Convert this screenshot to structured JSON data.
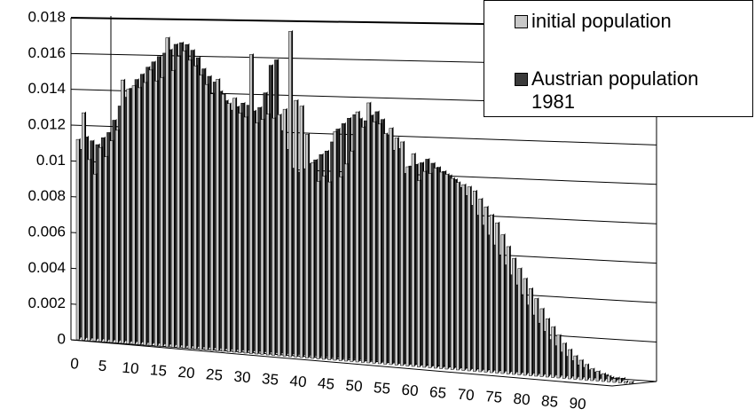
{
  "chart_data": {
    "type": "bar3d",
    "categories": [
      0,
      null,
      null,
      null,
      null,
      5,
      null,
      null,
      null,
      null,
      10,
      null,
      null,
      null,
      null,
      15,
      null,
      null,
      null,
      null,
      20,
      null,
      null,
      null,
      null,
      25,
      null,
      null,
      null,
      null,
      30,
      null,
      null,
      null,
      null,
      35,
      null,
      null,
      null,
      null,
      40,
      null,
      null,
      null,
      null,
      45,
      null,
      null,
      null,
      null,
      50,
      null,
      null,
      null,
      null,
      55,
      null,
      null,
      null,
      null,
      60,
      null,
      null,
      null,
      null,
      65,
      null,
      null,
      null,
      null,
      70,
      null,
      null,
      null,
      null,
      75,
      null,
      null,
      null,
      null,
      80,
      null,
      null,
      null,
      null,
      85,
      null,
      null,
      null,
      null,
      90,
      null,
      null,
      null,
      null,
      null,
      null,
      null,
      null,
      null
    ],
    "series": [
      {
        "name": "initial population",
        "color": "#c8c8c8",
        "values": [
          0.0112,
          0.0127,
          0.0101,
          0.0093,
          0.0108,
          0.0103,
          0.0112,
          0.0118,
          0.0146,
          0.0141,
          0.0143,
          0.0142,
          0.0145,
          0.0152,
          0.0146,
          0.0148,
          0.017,
          0.0152,
          0.016,
          0.0163,
          0.0158,
          0.0155,
          0.015,
          0.0145,
          0.014,
          0.0148,
          0.014,
          0.0135,
          0.0138,
          0.013,
          0.0128,
          0.0162,
          0.0125,
          0.0127,
          0.013,
          0.0128,
          0.013,
          0.0133,
          0.0175,
          0.0138,
          0.0135,
          0.012,
          0.0105,
          0.0095,
          0.0098,
          0.0095,
          0.0122,
          0.0098,
          0.0105,
          0.0112,
          0.0133,
          0.0125,
          0.0138,
          0.0128,
          0.0127,
          0.0122,
          0.0125,
          0.012,
          0.0118,
          0.0105,
          0.0112,
          0.0098,
          0.0103,
          0.0102,
          0.0105,
          0.0103,
          0.0102,
          0.01,
          0.0098,
          0.0097,
          0.0096,
          0.0094,
          0.009,
          0.0086,
          0.0082,
          0.0078,
          0.0072,
          0.0066,
          0.006,
          0.0055,
          0.005,
          0.0045,
          0.004,
          0.0035,
          0.003,
          0.0026,
          0.0022,
          0.0018,
          0.0015,
          0.0012,
          0.001,
          0.0008,
          0.0006,
          0.0005,
          0.0004,
          0.0003,
          0.0002,
          0.0002,
          0.0001,
          0.0001
        ]
      },
      {
        "name": "Austrian population 1981",
        "color": "#3a3a3a",
        "values": [
          0.0105,
          0.0112,
          0.011,
          0.0108,
          0.0112,
          0.0115,
          0.0122,
          0.013,
          0.0135,
          0.014,
          0.0145,
          0.0148,
          0.0152,
          0.0155,
          0.0158,
          0.016,
          0.0162,
          0.0165,
          0.0166,
          0.0165,
          0.0162,
          0.0158,
          0.0152,
          0.0148,
          0.0145,
          0.014,
          0.0135,
          0.013,
          0.0132,
          0.0134,
          0.0133,
          0.013,
          0.0132,
          0.014,
          0.0155,
          0.0158,
          0.012,
          0.011,
          0.01,
          0.0098,
          0.01,
          0.0103,
          0.0105,
          0.0108,
          0.011,
          0.0115,
          0.0122,
          0.0125,
          0.0128,
          0.013,
          0.0128,
          0.0127,
          0.013,
          0.0132,
          0.0128,
          0.012,
          0.0112,
          0.0113,
          0.01,
          0.0104,
          0.0105,
          0.0106,
          0.0108,
          0.0106,
          0.0104,
          0.0102,
          0.01,
          0.0098,
          0.0094,
          0.009,
          0.0085,
          0.008,
          0.0075,
          0.007,
          0.0065,
          0.006,
          0.0055,
          0.005,
          0.0045,
          0.004,
          0.0035,
          0.003,
          0.0026,
          0.0022,
          0.0018,
          0.0015,
          0.0012,
          0.001,
          0.0008,
          0.0006,
          0.0005,
          0.0004,
          0.0003,
          0.0002,
          0.0002,
          0.0001,
          0.0001,
          0.0001,
          0,
          0
        ]
      }
    ],
    "ylim": [
      0,
      0.018
    ],
    "yticks": [
      0,
      0.002,
      0.004,
      0.006,
      0.008,
      0.01,
      0.012,
      0.014,
      0.016,
      0.018
    ],
    "grid": true,
    "legend": "top-right"
  }
}
